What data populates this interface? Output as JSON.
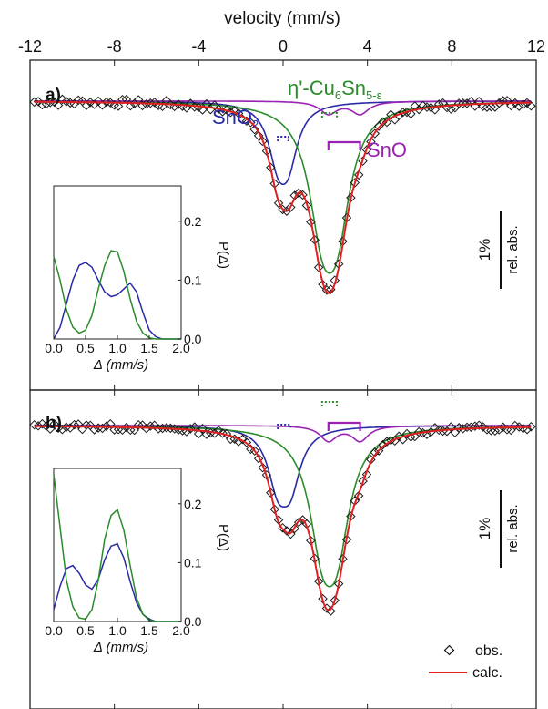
{
  "chart_data": {
    "type": "line",
    "xlabel": "velocity (mm/s)",
    "xlim": [
      -12,
      12
    ],
    "xticks": [
      -12,
      -8,
      -4,
      0,
      4,
      8,
      12
    ],
    "xtick_labels": [
      "-12",
      "-8",
      "-4",
      "0",
      "4",
      "8",
      "12"
    ],
    "scale_bar_label": "1%",
    "scale_bar_label2": "rel. abs.",
    "colors": {
      "obs": "#1a1a1a",
      "calc": "#e02020",
      "SnO2": "#2a2aa6",
      "Cu6Sn5": "#2a8c2a",
      "SnO": "#9a22b4"
    },
    "legend": {
      "placement": "bottom-right",
      "obs": "obs.",
      "calc": "calc."
    },
    "phase_labels": {
      "SnO2": "SnO",
      "SnO2_sub": "2",
      "Cu_prefix": "η'-Cu",
      "Cu_sub1": "6",
      "Cu_mid": "Sn",
      "Cu_sub2": "5-ε",
      "SnO": "SnO"
    },
    "panels": [
      {
        "label": "a)",
        "baseline_pct": 0,
        "ylim_pct": [
          -4.6,
          0.65
        ],
        "components": [
          {
            "name": "SnO2",
            "center": 0.0,
            "quadrupole_split": 0.5,
            "fwhm": 1.1,
            "depth_pct": 1.6
          },
          {
            "name": "Cu6Sn5",
            "center": 2.2,
            "quadrupole_split": 0.7,
            "fwhm": 1.55,
            "depth_pct": 3.3
          },
          {
            "name": "SnO",
            "center": 2.9,
            "quadrupole_split": 1.5,
            "fwhm": 1.0,
            "depth_pct": 0.4
          }
        ],
        "inset": {
          "xlabel": "Δ (mm/s)",
          "ylabel": "P(Δ)",
          "xlim": [
            0,
            2
          ],
          "ylim": [
            0,
            0.26
          ],
          "xticks": [
            "0.0",
            "0.5",
            "1.0",
            "1.5",
            "2.0"
          ],
          "yticks": [
            "0.0",
            "0.1",
            "0.2"
          ],
          "series": [
            {
              "name": "SnO2",
              "x": [
                0,
                0.1,
                0.2,
                0.3,
                0.4,
                0.5,
                0.6,
                0.7,
                0.8,
                0.9,
                1.0,
                1.1,
                1.2,
                1.3,
                1.4,
                1.5,
                1.6,
                1.7,
                1.8,
                1.9,
                2.0
              ],
              "values": [
                0.0,
                0.02,
                0.06,
                0.1,
                0.125,
                0.13,
                0.122,
                0.1,
                0.08,
                0.072,
                0.075,
                0.085,
                0.095,
                0.08,
                0.045,
                0.015,
                0.004,
                0.0,
                0.0,
                0.0,
                0.0
              ]
            },
            {
              "name": "Cu6Sn5",
              "x": [
                0,
                0.1,
                0.2,
                0.3,
                0.4,
                0.5,
                0.6,
                0.7,
                0.8,
                0.9,
                1.0,
                1.1,
                1.2,
                1.3,
                1.4,
                1.5,
                1.6,
                1.7,
                1.8,
                1.9,
                2.0
              ],
              "values": [
                0.14,
                0.1,
                0.05,
                0.02,
                0.01,
                0.015,
                0.04,
                0.085,
                0.125,
                0.15,
                0.148,
                0.115,
                0.068,
                0.03,
                0.01,
                0.002,
                0.0,
                0.0,
                0.0,
                0.0,
                0.0
              ]
            }
          ]
        }
      },
      {
        "label": "b)",
        "baseline_pct": 0,
        "ylim_pct": [
          -5.2,
          0.65
        ],
        "components": [
          {
            "name": "SnO2",
            "center": 0.05,
            "quadrupole_split": 0.6,
            "fwhm": 1.15,
            "depth_pct": 1.9
          },
          {
            "name": "Cu6Sn5",
            "center": 2.2,
            "quadrupole_split": 0.7,
            "fwhm": 1.5,
            "depth_pct": 3.6
          },
          {
            "name": "SnO",
            "center": 2.9,
            "quadrupole_split": 1.5,
            "fwhm": 0.95,
            "depth_pct": 0.55
          }
        ],
        "inset": {
          "xlabel": "Δ (mm/s)",
          "ylabel": "P(Δ)",
          "xlim": [
            0,
            2
          ],
          "ylim": [
            0,
            0.26
          ],
          "xticks": [
            "0.0",
            "0.5",
            "1.0",
            "1.5",
            "2.0"
          ],
          "yticks": [
            "0.0",
            "0.1",
            "0.2"
          ],
          "series": [
            {
              "name": "SnO2",
              "x": [
                0,
                0.1,
                0.2,
                0.3,
                0.4,
                0.5,
                0.6,
                0.7,
                0.8,
                0.9,
                1.0,
                1.1,
                1.2,
                1.3,
                1.4,
                1.5,
                1.6,
                1.7,
                1.8,
                1.9,
                2.0
              ],
              "values": [
                0.02,
                0.06,
                0.09,
                0.095,
                0.082,
                0.062,
                0.055,
                0.072,
                0.105,
                0.128,
                0.132,
                0.108,
                0.068,
                0.032,
                0.012,
                0.004,
                0.0,
                0.0,
                0.0,
                0.0,
                0.0
              ]
            },
            {
              "name": "Cu6Sn5",
              "x": [
                0,
                0.1,
                0.2,
                0.3,
                0.4,
                0.5,
                0.6,
                0.7,
                0.8,
                0.9,
                1.0,
                1.1,
                1.2,
                1.3,
                1.4,
                1.5,
                1.6,
                1.7,
                1.8,
                1.9,
                2.0
              ],
              "values": [
                0.25,
                0.16,
                0.07,
                0.025,
                0.006,
                0.004,
                0.02,
                0.07,
                0.14,
                0.18,
                0.19,
                0.155,
                0.095,
                0.04,
                0.012,
                0.002,
                0.0,
                0.0,
                0.0,
                0.0,
                0.0
              ]
            }
          ]
        }
      }
    ]
  }
}
